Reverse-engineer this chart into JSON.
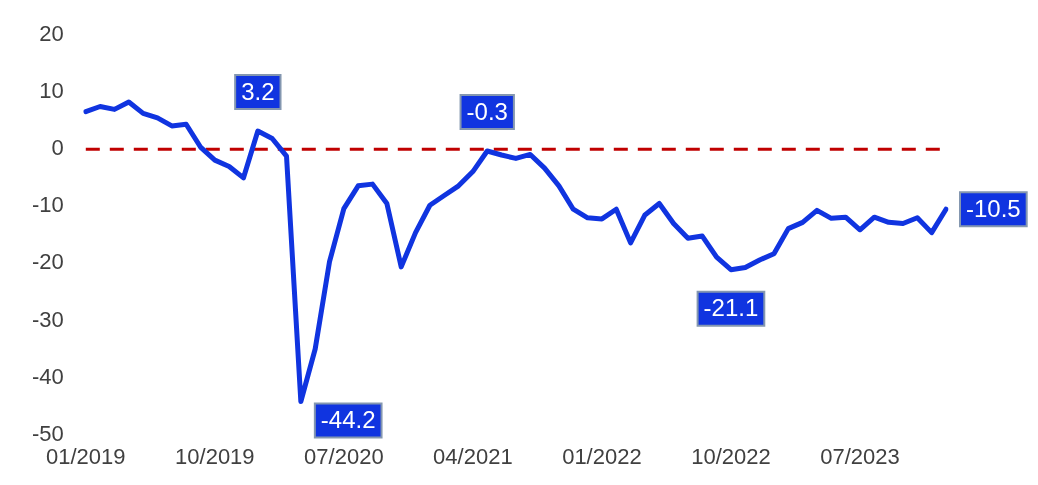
{
  "chart_data": {
    "type": "line",
    "categories": [
      "01/2019",
      null,
      null,
      null,
      null,
      null,
      null,
      null,
      null,
      "10/2019",
      null,
      null,
      null,
      null,
      null,
      null,
      null,
      null,
      "07/2020",
      null,
      null,
      null,
      null,
      null,
      null,
      null,
      null,
      "04/2021",
      null,
      null,
      null,
      null,
      null,
      null,
      null,
      null,
      "01/2022",
      null,
      null,
      null,
      null,
      null,
      null,
      null,
      null,
      "10/2022",
      null,
      null,
      null,
      null,
      null,
      null,
      null,
      null,
      "07/2023",
      null,
      null,
      null,
      null,
      null,
      null
    ],
    "series": [
      {
        "color": "#1034e0",
        "values": [
          6.6,
          7.5,
          7.0,
          8.3,
          6.3,
          5.5,
          4.1,
          4.4,
          0.4,
          -1.9,
          -3.0,
          -5.0,
          3.2,
          1.9,
          -1.2,
          -44.2,
          -35.0,
          -19.7,
          -10.4,
          -6.4,
          -6.1,
          -9.5,
          -20.6,
          -14.6,
          -9.8,
          -8.1,
          -6.4,
          -3.9,
          -0.3,
          -1.0,
          -1.6,
          -0.9,
          -3.3,
          -6.4,
          -10.5,
          -12.0,
          -12.2,
          -10.5,
          -16.4,
          -11.5,
          -9.5,
          -13.0,
          -15.6,
          -15.2,
          -18.9,
          -21.1,
          -20.7,
          -19.4,
          -18.3,
          -13.9,
          -12.8,
          -10.7,
          -12.1,
          -11.9,
          -14.1,
          -11.9,
          -12.8,
          -13.0,
          -12.0,
          -14.6,
          -10.5
        ],
        "value_labels": [
          null,
          null,
          null,
          null,
          null,
          null,
          null,
          null,
          null,
          null,
          null,
          null,
          "3.2",
          null,
          null,
          "-44.2",
          null,
          null,
          null,
          null,
          null,
          null,
          null,
          null,
          null,
          null,
          null,
          null,
          "-0.3",
          null,
          null,
          null,
          null,
          null,
          null,
          null,
          null,
          null,
          null,
          null,
          null,
          null,
          null,
          null,
          null,
          "-21.1",
          null,
          null,
          null,
          null,
          null,
          null,
          null,
          null,
          null,
          null,
          null,
          null,
          null,
          null,
          "-10.5"
        ]
      }
    ],
    "ylim": [
      -50,
      20
    ],
    "yticks": [
      -50,
      -40,
      -30,
      -20,
      -10,
      0,
      10,
      20
    ],
    "ref_lines": [
      {
        "axis": "y",
        "value": 0,
        "color": "#c00000",
        "line_style": "dashed"
      }
    ],
    "grid": false,
    "legend": false,
    "marker": "none",
    "line_style": "solid"
  }
}
